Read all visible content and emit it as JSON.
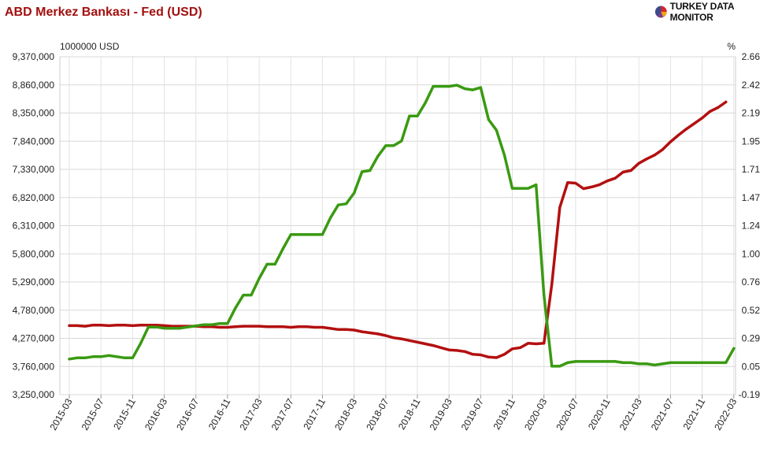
{
  "header": {
    "title": "ABD Merkez Bankası - Fed (USD)",
    "brand": "TURKEY DATA MONITOR",
    "brand_icon": "pie-chart-logo-icon"
  },
  "chart_data": {
    "type": "line",
    "left_axis_label": "1000000 USD",
    "right_axis_label": "%",
    "left_ylim": [
      3250000,
      9370000
    ],
    "right_ylim": [
      -0.19,
      2.66
    ],
    "left_ticks": [
      "3,250,000",
      "3,760,000",
      "4,270,000",
      "4,780,000",
      "5,290,000",
      "5,800,000",
      "6,310,000",
      "6,820,000",
      "7,330,000",
      "7,840,000",
      "8,350,000",
      "8,860,000",
      "9,370,000"
    ],
    "right_ticks": [
      "-0.19",
      "0.05",
      "0.29",
      "0.52",
      "0.76",
      "1.00",
      "1.24",
      "1.47",
      "1.71",
      "1.95",
      "2.19",
      "2.42",
      "2.66"
    ],
    "x_ticks": [
      "2015-03",
      "2015-07",
      "2015-11",
      "2016-03",
      "2016-07",
      "2016-11",
      "2017-03",
      "2017-07",
      "2017-11",
      "2018-03",
      "2018-07",
      "2018-11",
      "2019-03",
      "2019-07",
      "2019-11",
      "2020-03",
      "2020-07",
      "2020-11",
      "2021-03",
      "2021-07",
      "2021-11",
      "2022-03"
    ],
    "grid": true,
    "series": [
      {
        "axis": "left",
        "color": "#b31010",
        "x": [
          "2015-03",
          "2015-04",
          "2015-05",
          "2015-06",
          "2015-07",
          "2015-08",
          "2015-09",
          "2015-10",
          "2015-11",
          "2015-12",
          "2016-01",
          "2016-02",
          "2016-03",
          "2016-04",
          "2016-05",
          "2016-06",
          "2016-07",
          "2016-08",
          "2016-09",
          "2016-10",
          "2016-11",
          "2016-12",
          "2017-01",
          "2017-02",
          "2017-03",
          "2017-04",
          "2017-05",
          "2017-06",
          "2017-07",
          "2017-08",
          "2017-09",
          "2017-10",
          "2017-11",
          "2017-12",
          "2018-01",
          "2018-02",
          "2018-03",
          "2018-04",
          "2018-05",
          "2018-06",
          "2018-07",
          "2018-08",
          "2018-09",
          "2018-10",
          "2018-11",
          "2018-12",
          "2019-01",
          "2019-02",
          "2019-03",
          "2019-04",
          "2019-05",
          "2019-06",
          "2019-07",
          "2019-08",
          "2019-09",
          "2019-10",
          "2019-11",
          "2019-12",
          "2020-01",
          "2020-02",
          "2020-03",
          "2020-04",
          "2020-05",
          "2020-06",
          "2020-07",
          "2020-08",
          "2020-09",
          "2020-10",
          "2020-11",
          "2020-12",
          "2021-01",
          "2021-02",
          "2021-03",
          "2021-04",
          "2021-05",
          "2021-06",
          "2021-07",
          "2021-08",
          "2021-09",
          "2021-10",
          "2021-11",
          "2021-12",
          "2022-01",
          "2022-02"
        ],
        "values": [
          4500000,
          4500000,
          4490000,
          4510000,
          4510000,
          4500000,
          4510000,
          4510000,
          4500000,
          4510000,
          4510000,
          4510000,
          4500000,
          4490000,
          4490000,
          4490000,
          4490000,
          4480000,
          4480000,
          4470000,
          4470000,
          4480000,
          4490000,
          4490000,
          4490000,
          4480000,
          4480000,
          4480000,
          4470000,
          4480000,
          4480000,
          4470000,
          4470000,
          4450000,
          4430000,
          4430000,
          4420000,
          4390000,
          4370000,
          4350000,
          4320000,
          4280000,
          4260000,
          4230000,
          4200000,
          4170000,
          4140000,
          4100000,
          4060000,
          4050000,
          4030000,
          3980000,
          3970000,
          3930000,
          3920000,
          3980000,
          4080000,
          4100000,
          4180000,
          4170000,
          4180000,
          5250000,
          6640000,
          7090000,
          7080000,
          6980000,
          7010000,
          7050000,
          7120000,
          7170000,
          7280000,
          7310000,
          7440000,
          7520000,
          7590000,
          7690000,
          7830000,
          7950000,
          8060000,
          8160000,
          8260000,
          8380000,
          8450000,
          8550000
        ]
      },
      {
        "axis": "right",
        "color": "#3a9a12",
        "x": [
          "2015-03",
          "2015-04",
          "2015-05",
          "2015-06",
          "2015-07",
          "2015-08",
          "2015-09",
          "2015-10",
          "2015-11",
          "2015-12",
          "2016-01",
          "2016-02",
          "2016-03",
          "2016-04",
          "2016-05",
          "2016-06",
          "2016-07",
          "2016-08",
          "2016-09",
          "2016-10",
          "2016-11",
          "2016-12",
          "2017-01",
          "2017-02",
          "2017-03",
          "2017-04",
          "2017-05",
          "2017-06",
          "2017-07",
          "2017-08",
          "2017-09",
          "2017-10",
          "2017-11",
          "2017-12",
          "2018-01",
          "2018-02",
          "2018-03",
          "2018-04",
          "2018-05",
          "2018-06",
          "2018-07",
          "2018-08",
          "2018-09",
          "2018-10",
          "2018-11",
          "2018-12",
          "2019-01",
          "2019-02",
          "2019-03",
          "2019-04",
          "2019-05",
          "2019-06",
          "2019-07",
          "2019-08",
          "2019-09",
          "2019-10",
          "2019-11",
          "2019-12",
          "2020-01",
          "2020-02",
          "2020-03",
          "2020-04",
          "2020-05",
          "2020-06",
          "2020-07",
          "2020-08",
          "2020-09",
          "2020-10",
          "2020-11",
          "2020-12",
          "2021-01",
          "2021-02",
          "2021-03",
          "2021-04",
          "2021-05",
          "2021-06",
          "2021-07",
          "2021-08",
          "2021-09",
          "2021-10",
          "2021-11",
          "2021-12",
          "2022-01",
          "2022-02",
          "2022-03"
        ],
        "values": [
          0.11,
          0.12,
          0.12,
          0.13,
          0.13,
          0.14,
          0.13,
          0.12,
          0.12,
          0.24,
          0.38,
          0.38,
          0.37,
          0.37,
          0.37,
          0.38,
          0.39,
          0.4,
          0.4,
          0.41,
          0.41,
          0.54,
          0.65,
          0.65,
          0.79,
          0.91,
          0.91,
          1.04,
          1.16,
          1.16,
          1.16,
          1.16,
          1.16,
          1.3,
          1.41,
          1.42,
          1.51,
          1.69,
          1.7,
          1.82,
          1.91,
          1.91,
          1.95,
          2.16,
          2.16,
          2.27,
          2.41,
          2.41,
          2.41,
          2.42,
          2.39,
          2.38,
          2.4,
          2.13,
          2.04,
          1.83,
          1.55,
          1.55,
          1.55,
          1.58,
          0.65,
          0.05,
          0.05,
          0.08,
          0.09,
          0.09,
          0.09,
          0.09,
          0.09,
          0.09,
          0.08,
          0.08,
          0.07,
          0.07,
          0.06,
          0.07,
          0.08,
          0.08,
          0.08,
          0.08,
          0.08,
          0.08,
          0.08,
          0.08,
          0.2
        ]
      }
    ]
  }
}
